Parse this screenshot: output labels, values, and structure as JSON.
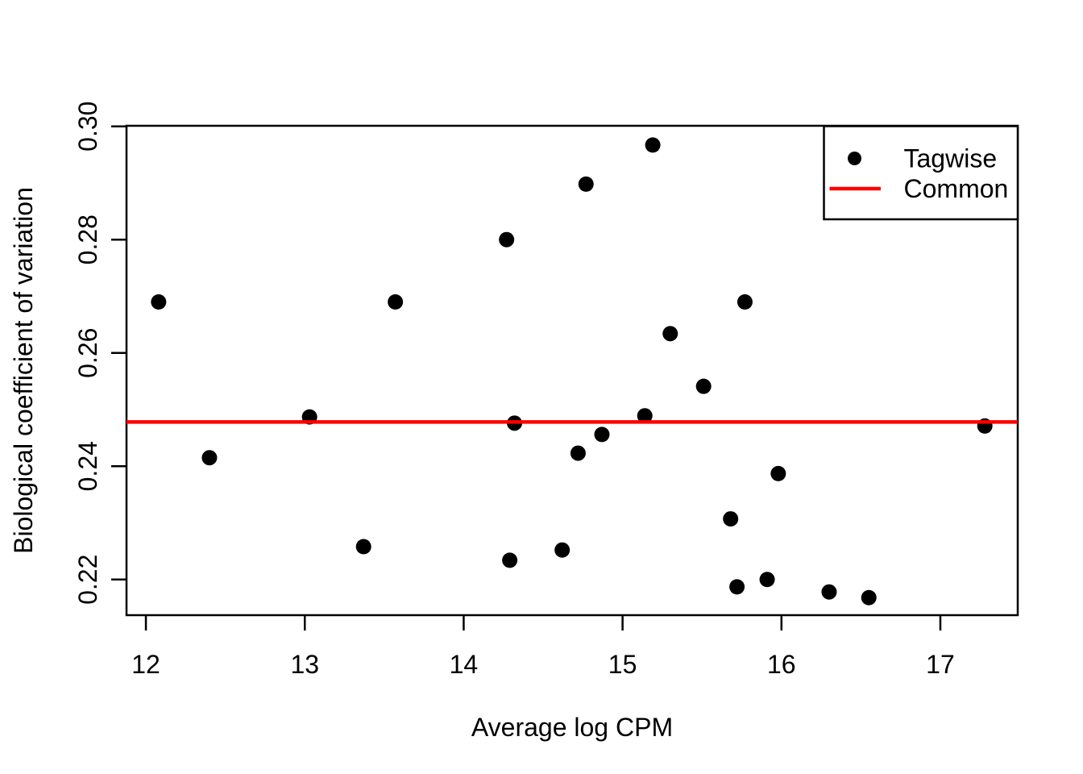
{
  "figure": {
    "background": "#FFFFFF",
    "foreground": "#000000",
    "accent_red": "#FF0000"
  },
  "chart_data": {
    "type": "scatter",
    "title": "",
    "xlabel": "Average log CPM",
    "ylabel": "Biological coefficient of variation",
    "xlim": [
      11.878,
      17.487
    ],
    "ylim": [
      0.2137,
      0.3001
    ],
    "grid": false,
    "x_ticks": {
      "values": [
        12,
        13,
        14,
        15,
        16,
        17
      ],
      "labels": [
        "12",
        "13",
        "14",
        "15",
        "16",
        "17"
      ]
    },
    "y_ticks": {
      "values": [
        0.22,
        0.24,
        0.26,
        0.28,
        0.3
      ],
      "labels": [
        "0.22",
        "0.24",
        "0.26",
        "0.28",
        "0.30"
      ]
    },
    "series": [
      {
        "name": "Tagwise",
        "kind": "scatter",
        "marker": "filled-circle",
        "color": "#000000",
        "points": [
          [
            12.08,
            0.269
          ],
          [
            12.4,
            0.2415
          ],
          [
            13.03,
            0.2487
          ],
          [
            13.37,
            0.2258
          ],
          [
            13.57,
            0.269
          ],
          [
            14.27,
            0.28
          ],
          [
            14.29,
            0.2234
          ],
          [
            14.32,
            0.2476
          ],
          [
            14.62,
            0.2252
          ],
          [
            14.72,
            0.2423
          ],
          [
            14.77,
            0.2898
          ],
          [
            14.87,
            0.2456
          ],
          [
            15.14,
            0.2489
          ],
          [
            15.19,
            0.2967
          ],
          [
            15.3,
            0.2634
          ],
          [
            15.51,
            0.2541
          ],
          [
            15.68,
            0.2307
          ],
          [
            15.72,
            0.2187
          ],
          [
            15.77,
            0.269
          ],
          [
            15.91,
            0.22
          ],
          [
            15.98,
            0.2387
          ],
          [
            16.3,
            0.2178
          ],
          [
            16.55,
            0.2168
          ],
          [
            17.28,
            0.2471
          ]
        ]
      },
      {
        "name": "Common",
        "kind": "hline",
        "color": "#FF0000",
        "value": 0.2478
      }
    ],
    "legend": {
      "position": "topright",
      "items": [
        {
          "label": "Tagwise",
          "marker": "point",
          "color": "#000000"
        },
        {
          "label": "Common",
          "marker": "line",
          "color": "#FF0000"
        }
      ]
    }
  }
}
